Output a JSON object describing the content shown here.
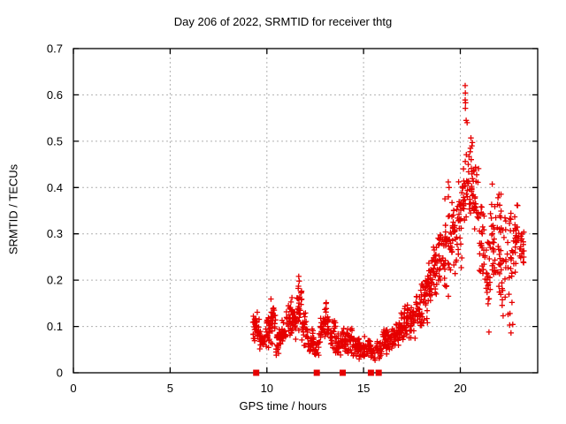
{
  "background": "#ffffff",
  "chart_data": {
    "type": "scatter",
    "title": "Day 206 of 2022, SRMTID for receiver thtg",
    "xlabel": "GPS time / hours",
    "ylabel": "SRMTID / TECUs",
    "xlim": [
      0,
      24
    ],
    "ylim": [
      0,
      0.7
    ],
    "xticks": [
      0,
      5,
      10,
      15,
      20
    ],
    "xtick_labels": [
      "0",
      "5",
      "10",
      "15",
      "20"
    ],
    "yticks": [
      0,
      0.1,
      0.2,
      0.3,
      0.4,
      0.5,
      0.6,
      0.7
    ],
    "ytick_labels": [
      "0",
      "0.1",
      "0.2",
      "0.3",
      "0.4",
      "0.5",
      "0.6",
      "0.7"
    ],
    "grid": true,
    "legend": "none",
    "marker": "plus",
    "marker_color": "#e60000",
    "grid_color": "#b0b0b0",
    "border_color": "#000000",
    "text_color": "#000000",
    "series": [
      {
        "name": "srmtid-scatter",
        "marker": "plus",
        "bin_format": [
          "t_start_hours",
          "t_end_hours",
          "value_min_TECUs",
          "value_max_TECUs",
          "n_points"
        ],
        "envelope_bins": [
          [
            9.28,
            9.6,
            0.06,
            0.135,
            30
          ],
          [
            9.6,
            9.9,
            0.04,
            0.105,
            26
          ],
          [
            9.9,
            10.15,
            0.05,
            0.125,
            22
          ],
          [
            10.15,
            10.45,
            0.055,
            0.165,
            28
          ],
          [
            10.45,
            10.75,
            0.035,
            0.1,
            26
          ],
          [
            10.75,
            11.0,
            0.05,
            0.12,
            22
          ],
          [
            11.0,
            11.3,
            0.06,
            0.165,
            26
          ],
          [
            11.3,
            11.55,
            0.07,
            0.15,
            24
          ],
          [
            11.55,
            11.8,
            0.08,
            0.21,
            26
          ],
          [
            11.8,
            12.1,
            0.05,
            0.14,
            24
          ],
          [
            12.1,
            12.4,
            0.035,
            0.1,
            24
          ],
          [
            12.4,
            12.7,
            0.025,
            0.085,
            22
          ],
          [
            12.7,
            13.0,
            0.05,
            0.13,
            24
          ],
          [
            13.0,
            13.25,
            0.06,
            0.155,
            22
          ],
          [
            13.25,
            13.55,
            0.04,
            0.12,
            24
          ],
          [
            13.55,
            13.85,
            0.03,
            0.09,
            24
          ],
          [
            13.85,
            14.15,
            0.035,
            0.1,
            24
          ],
          [
            14.15,
            14.45,
            0.04,
            0.11,
            24
          ],
          [
            14.45,
            14.75,
            0.03,
            0.085,
            24
          ],
          [
            14.75,
            15.05,
            0.025,
            0.08,
            24
          ],
          [
            15.05,
            15.35,
            0.03,
            0.085,
            22
          ],
          [
            15.35,
            15.65,
            0.02,
            0.07,
            18
          ],
          [
            15.65,
            15.95,
            0.025,
            0.08,
            20
          ],
          [
            15.95,
            16.2,
            0.03,
            0.12,
            22
          ],
          [
            16.2,
            16.5,
            0.045,
            0.1,
            24
          ],
          [
            16.5,
            16.8,
            0.05,
            0.115,
            26
          ],
          [
            16.8,
            17.1,
            0.055,
            0.13,
            26
          ],
          [
            17.1,
            17.4,
            0.06,
            0.155,
            26
          ],
          [
            17.4,
            17.7,
            0.07,
            0.15,
            26
          ],
          [
            17.7,
            18.0,
            0.08,
            0.185,
            26
          ],
          [
            18.0,
            18.3,
            0.1,
            0.23,
            28
          ],
          [
            18.3,
            18.6,
            0.13,
            0.27,
            28
          ],
          [
            18.6,
            18.9,
            0.15,
            0.3,
            28
          ],
          [
            18.9,
            19.2,
            0.17,
            0.33,
            28
          ],
          [
            19.2,
            19.5,
            0.15,
            0.41,
            28
          ],
          [
            19.5,
            19.8,
            0.2,
            0.37,
            26
          ],
          [
            19.8,
            20.1,
            0.22,
            0.43,
            26
          ],
          [
            20.1,
            20.35,
            0.25,
            0.52,
            24
          ],
          [
            20.35,
            20.65,
            0.28,
            0.5,
            26
          ],
          [
            20.65,
            20.95,
            0.27,
            0.47,
            26
          ],
          [
            20.95,
            21.25,
            0.2,
            0.4,
            26
          ],
          [
            21.25,
            21.55,
            0.1,
            0.33,
            24
          ],
          [
            21.55,
            21.85,
            0.17,
            0.42,
            26
          ],
          [
            21.85,
            22.15,
            0.12,
            0.46,
            26
          ],
          [
            22.15,
            22.45,
            0.1,
            0.35,
            20
          ],
          [
            22.45,
            22.75,
            0.08,
            0.39,
            22
          ],
          [
            22.75,
            23.05,
            0.2,
            0.39,
            24
          ],
          [
            23.05,
            23.3,
            0.22,
            0.31,
            18
          ]
        ],
        "outlier_points": [
          [
            20.25,
            0.62
          ],
          [
            20.26,
            0.604
          ],
          [
            20.25,
            0.589
          ],
          [
            20.27,
            0.583
          ],
          [
            20.26,
            0.571
          ],
          [
            20.3,
            0.545
          ],
          [
            20.35,
            0.54
          ],
          [
            20.55,
            0.507
          ],
          [
            20.62,
            0.497
          ],
          [
            20.6,
            0.49
          ],
          [
            19.38,
            0.412
          ],
          [
            19.42,
            0.4
          ],
          [
            11.65,
            0.208
          ],
          [
            11.67,
            0.198
          ],
          [
            21.48,
            0.088
          ],
          [
            22.55,
            0.103
          ],
          [
            22.62,
            0.086
          ]
        ]
      },
      {
        "name": "flagged-epochs-zero",
        "marker": "filled-square",
        "value": 0,
        "times": [
          9.45,
          12.58,
          13.92,
          15.38,
          15.78
        ]
      }
    ]
  }
}
